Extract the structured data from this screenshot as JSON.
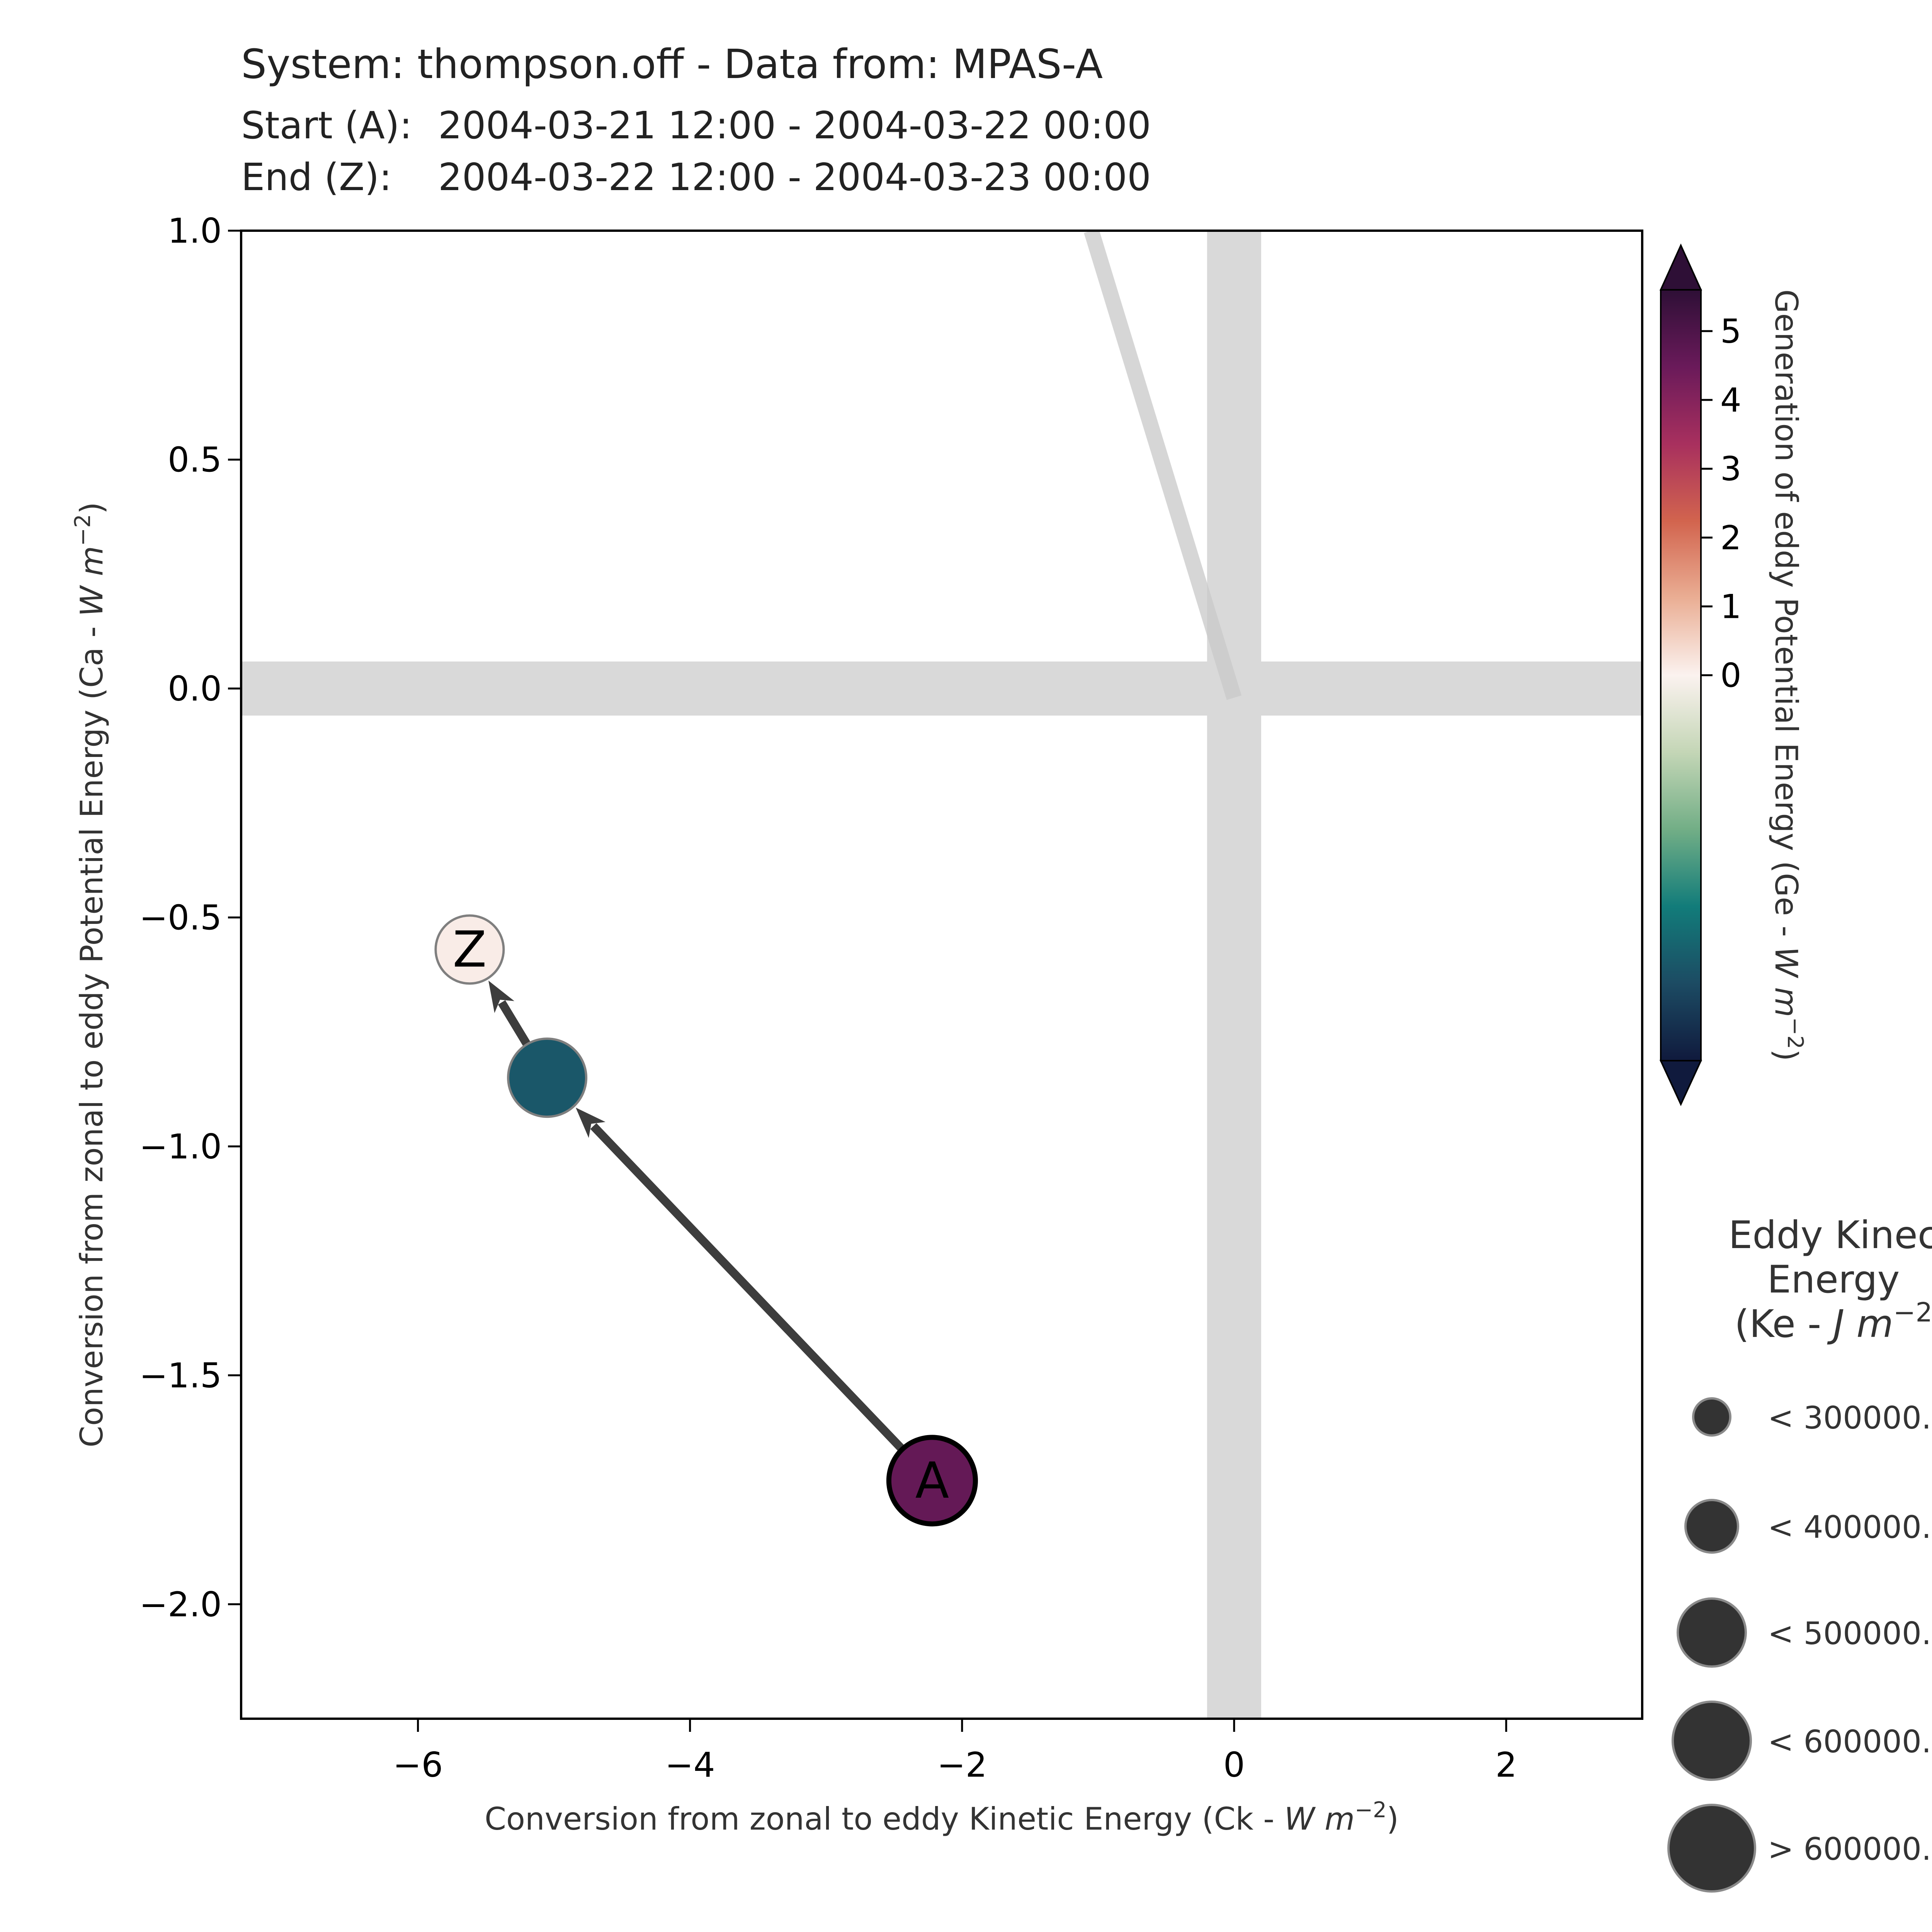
{
  "header": {
    "title": "System: thompson.off - Data from: MPAS-A",
    "start_label": "Start (A):",
    "start_range": "2004-03-21 12:00 - 2004-03-22 00:00",
    "end_label": "End (Z):",
    "end_range": "2004-03-22 12:00 - 2004-03-23 00:00"
  },
  "chart_data": {
    "type": "scatter",
    "title": "System: thompson.off - Data from: MPAS-A",
    "xlabel": "Conversion from zonal to eddy Kinetic Energy (Ck - W m^-2)",
    "ylabel": "Conversion from zonal to eddy Potential Energy (Ca - W m^-2)",
    "xlim": [
      -7.3,
      3.0
    ],
    "ylim": [
      -2.25,
      1.0
    ],
    "x_ticks": [
      -6,
      -4,
      -2,
      0,
      2
    ],
    "x_tick_labels": [
      "−6",
      "−4",
      "−2",
      "0",
      "2"
    ],
    "y_ticks": [
      1.0,
      0.5,
      0.0,
      -0.5,
      -1.0,
      -1.5,
      -2.0
    ],
    "y_tick_labels": [
      "1.0",
      "0.5",
      "0.0",
      "−0.5",
      "−1.0",
      "−1.5",
      "−2.0"
    ],
    "grid": false,
    "reference_bands": {
      "x": 0,
      "y": 0,
      "color": "#d9d9d9"
    },
    "trend_line": {
      "from": [
        -1.05,
        1.0
      ],
      "to": [
        0.0,
        -0.02
      ],
      "color": "#c8c8c8"
    },
    "points": [
      {
        "label": "A",
        "x": -2.22,
        "y": -1.73,
        "ge": 4.6,
        "ke_class": 4,
        "color": "#6a1a5a"
      },
      {
        "label": "",
        "x": -5.05,
        "y": -0.85,
        "ge": -4.2,
        "ke_class": 3,
        "color": "#1e475a"
      },
      {
        "label": "Z",
        "x": -5.62,
        "y": -0.57,
        "ge": 0.1,
        "ke_class": 2,
        "color": "#f8ece8"
      }
    ],
    "colorbar": {
      "label": "Generation of eddy Potential Energy (Ge - W m^-2)",
      "ticks": [
        5,
        4,
        3,
        2,
        1,
        0
      ],
      "range": [
        -5.6,
        5.6
      ],
      "colors": [
        "#2e0f36",
        "#6a1a5a",
        "#a8305e",
        "#d2644e",
        "#eaae94",
        "#fbf2ef",
        "#c4d6b6",
        "#72ae86",
        "#127c7a",
        "#1c4b63",
        "#101a3d"
      ]
    },
    "size_legend": {
      "title": [
        "Eddy Kinec",
        "Energy",
        "(Ke - J m^-2"
      ],
      "labels": [
        "< 300000.",
        "< 400000.",
        "< 500000.",
        "< 600000.",
        "> 600000."
      ]
    }
  }
}
